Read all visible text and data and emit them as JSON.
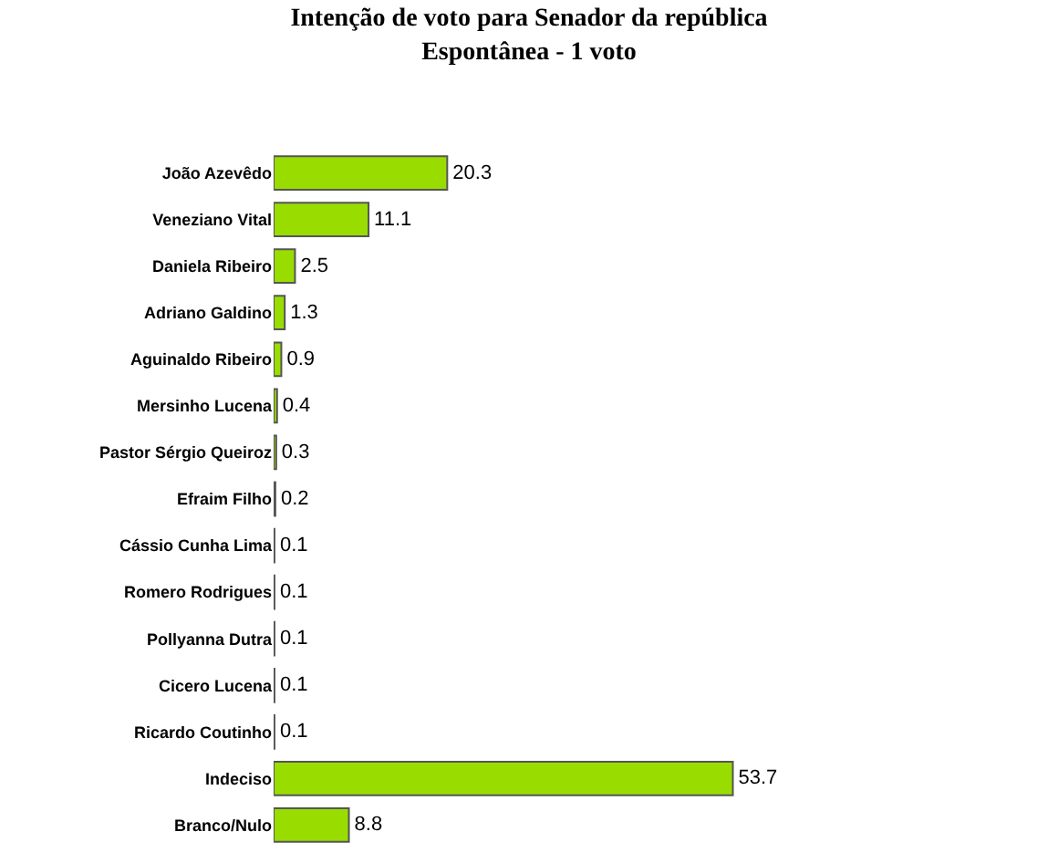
{
  "chart_data": {
    "type": "bar",
    "orientation": "horizontal",
    "title": "Intenção de voto para Senador da república",
    "subtitle": "Espontânea - 1 voto",
    "categories": [
      "João Azevêdo",
      "Veneziano Vital",
      "Daniela Ribeiro",
      "Adriano Galdino",
      "Aguinaldo Ribeiro",
      "Mersinho Lucena",
      "Pastor Sérgio Queiroz",
      "Efraim Filho",
      "Cássio Cunha Lima",
      "Romero Rodrigues",
      "Pollyanna Dutra",
      "Cicero Lucena",
      "Ricardo Coutinho",
      "Indeciso",
      "Branco/Nulo"
    ],
    "values": [
      20.3,
      11.1,
      2.5,
      1.3,
      0.9,
      0.4,
      0.3,
      0.2,
      0.1,
      0.1,
      0.1,
      0.1,
      0.1,
      53.7,
      8.8
    ],
    "color": "#99dd00",
    "data_labels": true,
    "legend": false
  }
}
